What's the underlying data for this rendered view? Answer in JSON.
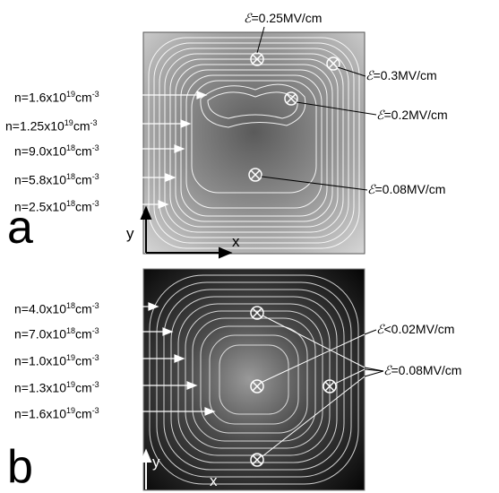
{
  "panel_a": {
    "letter": "a",
    "axis_x": "x",
    "axis_y": "y",
    "density_labels": [
      {
        "base": "n=1.6x10",
        "exp": "19",
        "unit": "cm",
        "unit_exp": "-3"
      },
      {
        "base": "n=1.25x10",
        "exp": "19",
        "unit": "cm",
        "unit_exp": "-3"
      },
      {
        "base": "n=9.0x10",
        "exp": "18",
        "unit": "cm",
        "unit_exp": "-3"
      },
      {
        "base": "n=5.8x10",
        "exp": "18",
        "unit": "cm",
        "unit_exp": "-3"
      },
      {
        "base": "n=2.5x10",
        "exp": "18",
        "unit": "cm",
        "unit_exp": "-3"
      }
    ],
    "field_labels": [
      {
        "symbol": "ℰ",
        "text": "=0.25MV/cm"
      },
      {
        "symbol": "ℰ",
        "text": "=0.3MV/cm"
      },
      {
        "symbol": "ℰ",
        "text": "=0.2MV/cm"
      },
      {
        "symbol": "ℰ",
        "text": "=0.08MV/cm"
      }
    ]
  },
  "panel_b": {
    "letter": "b",
    "axis_x": "x",
    "axis_y": "y",
    "density_labels": [
      {
        "base": "n=4.0x10",
        "exp": "18",
        "unit": "cm",
        "unit_exp": "-3"
      },
      {
        "base": "n=7.0x10",
        "exp": "18",
        "unit": "cm",
        "unit_exp": "-3"
      },
      {
        "base": "n=1.0x10",
        "exp": "19",
        "unit": "cm",
        "unit_exp": "-3"
      },
      {
        "base": "n=1.3x10",
        "exp": "19",
        "unit": "cm",
        "unit_exp": "-3"
      },
      {
        "base": "n=1.6x10",
        "exp": "19",
        "unit": "cm",
        "unit_exp": "-3"
      }
    ],
    "field_labels": [
      {
        "symbol": "ℰ",
        "text": "<0.02MV/cm"
      },
      {
        "symbol": "ℰ",
        "text": "=0.08MV/cm"
      }
    ]
  }
}
